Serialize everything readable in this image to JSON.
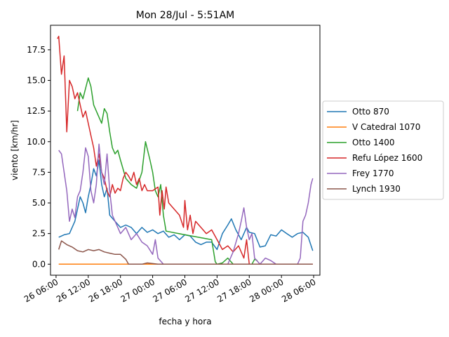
{
  "chart_data": {
    "type": "line",
    "title": "Mon 28/Jul - 5:51AM",
    "xlabel": "fecha y hora",
    "ylabel": "viento [km/hr]",
    "x_unit": "datetime",
    "xlim": [
      "2025-07-26 04:58",
      "2025-07-28 07:10"
    ],
    "ylim": [
      -0.9,
      19.5
    ],
    "x_ticks": [
      {
        "value": "2025-07-26 06:00",
        "label": "26 06:00"
      },
      {
        "value": "2025-07-26 12:00",
        "label": "26 12:00"
      },
      {
        "value": "2025-07-26 18:00",
        "label": "26 18:00"
      },
      {
        "value": "2025-07-27 00:00",
        "label": "27 00:00"
      },
      {
        "value": "2025-07-27 06:00",
        "label": "27 06:00"
      },
      {
        "value": "2025-07-27 12:00",
        "label": "27 12:00"
      },
      {
        "value": "2025-07-27 18:00",
        "label": "27 18:00"
      },
      {
        "value": "2025-07-28 00:00",
        "label": "28 00:00"
      },
      {
        "value": "2025-07-28 06:00",
        "label": "28 06:00"
      }
    ],
    "y_ticks": [
      {
        "value": 0.0,
        "label": "0.0"
      },
      {
        "value": 2.5,
        "label": "2.5"
      },
      {
        "value": 5.0,
        "label": "5.0"
      },
      {
        "value": 7.5,
        "label": "7.5"
      },
      {
        "value": 10.0,
        "label": "10.0"
      },
      {
        "value": 12.5,
        "label": "12.5"
      },
      {
        "value": 15.0,
        "label": "15.0"
      },
      {
        "value": 17.5,
        "label": "17.5"
      }
    ],
    "grid": false,
    "legend_position": "right",
    "series": [
      {
        "name": "Otto 870",
        "color": "#1f77b4",
        "points": [
          [
            "2025-07-26 06:30",
            2.2
          ],
          [
            "2025-07-26 07:30",
            2.4
          ],
          [
            "2025-07-26 08:30",
            2.5
          ],
          [
            "2025-07-26 09:30",
            3.5
          ],
          [
            "2025-07-26 10:00",
            4.5
          ],
          [
            "2025-07-26 10:30",
            5.5
          ],
          [
            "2025-07-26 11:00",
            5.0
          ],
          [
            "2025-07-26 11:30",
            4.2
          ],
          [
            "2025-07-26 12:00",
            5.5
          ],
          [
            "2025-07-26 12:30",
            6.5
          ],
          [
            "2025-07-26 13:00",
            7.8
          ],
          [
            "2025-07-26 13:30",
            7.2
          ],
          [
            "2025-07-26 14:00",
            8.5
          ],
          [
            "2025-07-26 14:30",
            6.5
          ],
          [
            "2025-07-26 15:00",
            5.5
          ],
          [
            "2025-07-26 15:30",
            6.2
          ],
          [
            "2025-07-26 16:00",
            4.0
          ],
          [
            "2025-07-26 17:00",
            3.5
          ],
          [
            "2025-07-26 18:00",
            3.0
          ],
          [
            "2025-07-26 19:00",
            3.2
          ],
          [
            "2025-07-26 20:00",
            3.0
          ],
          [
            "2025-07-26 21:00",
            2.5
          ],
          [
            "2025-07-26 22:00",
            3.0
          ],
          [
            "2025-07-26 23:00",
            2.6
          ],
          [
            "2025-07-27 00:00",
            2.8
          ],
          [
            "2025-07-27 01:00",
            2.5
          ],
          [
            "2025-07-27 02:00",
            2.7
          ],
          [
            "2025-07-27 03:00",
            2.2
          ],
          [
            "2025-07-27 04:00",
            2.4
          ],
          [
            "2025-07-27 05:00",
            2.0
          ],
          [
            "2025-07-27 06:00",
            2.4
          ],
          [
            "2025-07-27 07:00",
            2.3
          ],
          [
            "2025-07-27 08:00",
            1.8
          ],
          [
            "2025-07-27 09:00",
            1.6
          ],
          [
            "2025-07-27 10:00",
            1.8
          ],
          [
            "2025-07-27 11:00",
            1.8
          ],
          [
            "2025-07-27 12:00",
            1.2
          ],
          [
            "2025-07-27 13:00",
            2.5
          ],
          [
            "2025-07-27 14:00",
            3.2
          ],
          [
            "2025-07-27 14:40",
            3.7
          ],
          [
            "2025-07-27 15:30",
            2.8
          ],
          [
            "2025-07-27 16:30",
            2.0
          ],
          [
            "2025-07-27 17:30",
            3.0
          ],
          [
            "2025-07-27 18:00",
            2.6
          ],
          [
            "2025-07-27 19:00",
            2.5
          ],
          [
            "2025-07-27 20:00",
            1.4
          ],
          [
            "2025-07-27 21:00",
            1.5
          ],
          [
            "2025-07-27 22:00",
            2.4
          ],
          [
            "2025-07-27 23:00",
            2.3
          ],
          [
            "2025-07-28 00:00",
            2.8
          ],
          [
            "2025-07-28 01:00",
            2.5
          ],
          [
            "2025-07-28 02:00",
            2.2
          ],
          [
            "2025-07-28 03:00",
            2.5
          ],
          [
            "2025-07-28 04:00",
            2.6
          ],
          [
            "2025-07-28 05:00",
            2.2
          ],
          [
            "2025-07-28 05:50",
            1.1
          ]
        ]
      },
      {
        "name": "V Catedral 1070",
        "color": "#ff7f0e",
        "points": [
          [
            "2025-07-26 06:30",
            0.0
          ],
          [
            "2025-07-27 00:00",
            0.0
          ],
          [
            "2025-07-27 12:00",
            0.0
          ],
          [
            "2025-07-28 00:00",
            0.0
          ],
          [
            "2025-07-28 05:50",
            0.0
          ]
        ]
      },
      {
        "name": "Otto 1400",
        "color": "#2ca02c",
        "points": [
          [
            "2025-07-26 10:00",
            12.5
          ],
          [
            "2025-07-26 10:30",
            14.0
          ],
          [
            "2025-07-26 11:00",
            13.5
          ],
          [
            "2025-07-26 12:00",
            15.2
          ],
          [
            "2025-07-26 12:30",
            14.5
          ],
          [
            "2025-07-26 13:00",
            13.0
          ],
          [
            "2025-07-26 13:30",
            12.5
          ],
          [
            "2025-07-26 14:00",
            12.0
          ],
          [
            "2025-07-26 14:30",
            11.5
          ],
          [
            "2025-07-26 15:00",
            12.7
          ],
          [
            "2025-07-26 15:30",
            12.3
          ],
          [
            "2025-07-26 16:00",
            10.8
          ],
          [
            "2025-07-26 16:30",
            9.5
          ],
          [
            "2025-07-26 17:00",
            9.0
          ],
          [
            "2025-07-26 17:30",
            9.3
          ],
          [
            "2025-07-26 18:00",
            8.5
          ],
          [
            "2025-07-26 19:00",
            7.0
          ],
          [
            "2025-07-26 20:00",
            6.5
          ],
          [
            "2025-07-26 21:00",
            6.2
          ],
          [
            "2025-07-26 22:00",
            7.5
          ],
          [
            "2025-07-26 22:40",
            10.0
          ],
          [
            "2025-07-26 23:30",
            8.5
          ],
          [
            "2025-07-27 00:00",
            7.5
          ],
          [
            "2025-07-27 00:30",
            6.0
          ],
          [
            "2025-07-27 01:00",
            5.5
          ],
          [
            "2025-07-27 01:30",
            6.5
          ],
          [
            "2025-07-27 02:00",
            4.0
          ],
          [
            "2025-07-27 02:30",
            2.7
          ],
          [
            "2025-07-27 06:00",
            2.4
          ],
          [
            "2025-07-27 11:00",
            2.0
          ],
          [
            "2025-07-27 11:40",
            0.2
          ],
          [
            "2025-07-27 12:00",
            0.0
          ],
          [
            "2025-07-27 13:00",
            0.1
          ],
          [
            "2025-07-27 14:00",
            0.5
          ],
          [
            "2025-07-27 15:00",
            0.0
          ],
          [
            "2025-07-27 18:30",
            0.0
          ],
          [
            "2025-07-27 19:00",
            0.4
          ],
          [
            "2025-07-27 19:30",
            0.3
          ]
        ]
      },
      {
        "name": "Refu López 1600",
        "color": "#d62728",
        "points": [
          [
            "2025-07-26 06:15",
            18.4
          ],
          [
            "2025-07-26 06:30",
            18.6
          ],
          [
            "2025-07-26 07:00",
            15.5
          ],
          [
            "2025-07-26 07:30",
            17.0
          ],
          [
            "2025-07-26 08:00",
            10.8
          ],
          [
            "2025-07-26 08:30",
            15.0
          ],
          [
            "2025-07-26 09:00",
            14.5
          ],
          [
            "2025-07-26 09:30",
            13.5
          ],
          [
            "2025-07-26 10:00",
            14.0
          ],
          [
            "2025-07-26 10:30",
            13.0
          ],
          [
            "2025-07-26 11:00",
            12.0
          ],
          [
            "2025-07-26 11:30",
            12.5
          ],
          [
            "2025-07-26 12:00",
            11.5
          ],
          [
            "2025-07-26 12:30",
            10.5
          ],
          [
            "2025-07-26 13:00",
            9.5
          ],
          [
            "2025-07-26 13:30",
            8.0
          ],
          [
            "2025-07-26 14:00",
            9.0
          ],
          [
            "2025-07-26 14:30",
            7.5
          ],
          [
            "2025-07-26 15:00",
            7.0
          ],
          [
            "2025-07-26 15:30",
            6.0
          ],
          [
            "2025-07-26 16:00",
            5.5
          ],
          [
            "2025-07-26 16:30",
            6.5
          ],
          [
            "2025-07-26 17:00",
            5.8
          ],
          [
            "2025-07-26 17:30",
            6.2
          ],
          [
            "2025-07-26 18:00",
            6.0
          ],
          [
            "2025-07-26 18:30",
            7.0
          ],
          [
            "2025-07-26 19:00",
            7.5
          ],
          [
            "2025-07-26 19:30",
            7.2
          ],
          [
            "2025-07-26 20:00",
            6.8
          ],
          [
            "2025-07-26 20:30",
            7.5
          ],
          [
            "2025-07-26 21:00",
            6.5
          ],
          [
            "2025-07-26 21:30",
            7.0
          ],
          [
            "2025-07-26 22:00",
            6.0
          ],
          [
            "2025-07-26 22:30",
            6.5
          ],
          [
            "2025-07-26 23:00",
            6.0
          ],
          [
            "2025-07-27 00:00",
            6.0
          ],
          [
            "2025-07-27 01:00",
            6.3
          ],
          [
            "2025-07-27 01:20",
            4.0
          ],
          [
            "2025-07-27 01:45",
            6.0
          ],
          [
            "2025-07-27 02:10",
            4.5
          ],
          [
            "2025-07-27 02:30",
            6.3
          ],
          [
            "2025-07-27 03:00",
            5.0
          ],
          [
            "2025-07-27 05:00",
            4.0
          ],
          [
            "2025-07-27 05:45",
            3.0
          ],
          [
            "2025-07-27 06:00",
            5.2
          ],
          [
            "2025-07-27 06:30",
            2.8
          ],
          [
            "2025-07-27 07:00",
            4.0
          ],
          [
            "2025-07-27 07:30",
            2.5
          ],
          [
            "2025-07-27 08:00",
            3.5
          ],
          [
            "2025-07-27 09:00",
            3.0
          ],
          [
            "2025-07-27 10:00",
            2.5
          ],
          [
            "2025-07-27 11:00",
            2.8
          ],
          [
            "2025-07-27 12:00",
            2.0
          ],
          [
            "2025-07-27 13:00",
            1.2
          ],
          [
            "2025-07-27 14:00",
            1.5
          ],
          [
            "2025-07-27 15:00",
            1.0
          ],
          [
            "2025-07-27 16:00",
            1.5
          ],
          [
            "2025-07-27 17:00",
            0.5
          ],
          [
            "2025-07-27 17:30",
            2.0
          ],
          [
            "2025-07-27 18:00",
            0.0
          ],
          [
            "2025-07-28 00:00",
            0.0
          ],
          [
            "2025-07-28 05:50",
            0.0
          ]
        ]
      },
      {
        "name": "Frey 1770",
        "color": "#9467bd",
        "points": [
          [
            "2025-07-26 06:30",
            9.3
          ],
          [
            "2025-07-26 07:00",
            9.0
          ],
          [
            "2025-07-26 07:30",
            7.5
          ],
          [
            "2025-07-26 08:00",
            6.0
          ],
          [
            "2025-07-26 08:30",
            3.5
          ],
          [
            "2025-07-26 09:00",
            4.5
          ],
          [
            "2025-07-26 09:30",
            3.8
          ],
          [
            "2025-07-26 10:00",
            5.5
          ],
          [
            "2025-07-26 10:30",
            6.0
          ],
          [
            "2025-07-26 11:00",
            7.5
          ],
          [
            "2025-07-26 11:30",
            9.5
          ],
          [
            "2025-07-26 12:00",
            8.8
          ],
          [
            "2025-07-26 12:30",
            6.0
          ],
          [
            "2025-07-26 13:00",
            5.0
          ],
          [
            "2025-07-26 13:30",
            6.5
          ],
          [
            "2025-07-26 14:00",
            9.8
          ],
          [
            "2025-07-26 14:30",
            7.5
          ],
          [
            "2025-07-26 15:00",
            6.5
          ],
          [
            "2025-07-26 15:30",
            9.0
          ],
          [
            "2025-07-26 16:00",
            6.0
          ],
          [
            "2025-07-26 16:30",
            4.0
          ],
          [
            "2025-07-26 17:00",
            3.5
          ],
          [
            "2025-07-26 17:30",
            3.0
          ],
          [
            "2025-07-26 18:00",
            2.5
          ],
          [
            "2025-07-26 19:00",
            3.0
          ],
          [
            "2025-07-26 20:00",
            2.0
          ],
          [
            "2025-07-26 21:00",
            2.5
          ],
          [
            "2025-07-26 22:00",
            1.8
          ],
          [
            "2025-07-26 23:00",
            1.5
          ],
          [
            "2025-07-27 00:00",
            0.8
          ],
          [
            "2025-07-27 00:30",
            2.0
          ],
          [
            "2025-07-27 01:00",
            0.5
          ],
          [
            "2025-07-27 02:00",
            0.0
          ],
          [
            "2025-07-27 08:00",
            0.0
          ],
          [
            "2025-07-27 14:00",
            0.0
          ],
          [
            "2025-07-27 15:00",
            1.0
          ],
          [
            "2025-07-27 16:00",
            2.5
          ],
          [
            "2025-07-27 16:30",
            3.5
          ],
          [
            "2025-07-27 17:00",
            4.6
          ],
          [
            "2025-07-27 17:30",
            3.0
          ],
          [
            "2025-07-27 18:00",
            2.0
          ],
          [
            "2025-07-27 18:30",
            2.5
          ],
          [
            "2025-07-27 19:00",
            0.5
          ],
          [
            "2025-07-27 20:00",
            0.0
          ],
          [
            "2025-07-27 21:00",
            0.5
          ],
          [
            "2025-07-27 22:00",
            0.3
          ],
          [
            "2025-07-27 23:00",
            0.0
          ],
          [
            "2025-07-28 01:00",
            0.0
          ],
          [
            "2025-07-28 03:00",
            0.0
          ],
          [
            "2025-07-28 03:30",
            0.5
          ],
          [
            "2025-07-28 04:00",
            3.5
          ],
          [
            "2025-07-28 04:30",
            4.0
          ],
          [
            "2025-07-28 05:00",
            5.0
          ],
          [
            "2025-07-28 05:30",
            6.5
          ],
          [
            "2025-07-28 05:50",
            7.0
          ]
        ]
      },
      {
        "name": "Lynch 1930",
        "color": "#8c564b",
        "points": [
          [
            "2025-07-26 06:30",
            1.2
          ],
          [
            "2025-07-26 07:00",
            1.9
          ],
          [
            "2025-07-26 08:00",
            1.6
          ],
          [
            "2025-07-26 09:00",
            1.4
          ],
          [
            "2025-07-26 10:00",
            1.1
          ],
          [
            "2025-07-26 11:00",
            1.0
          ],
          [
            "2025-07-26 12:00",
            1.2
          ],
          [
            "2025-07-26 13:00",
            1.1
          ],
          [
            "2025-07-26 14:00",
            1.2
          ],
          [
            "2025-07-26 15:00",
            1.0
          ],
          [
            "2025-07-26 16:00",
            0.9
          ],
          [
            "2025-07-26 17:00",
            0.8
          ],
          [
            "2025-07-26 18:00",
            0.8
          ],
          [
            "2025-07-26 19:00",
            0.4
          ],
          [
            "2025-07-26 19:30",
            0.0
          ],
          [
            "2025-07-26 22:00",
            0.0
          ],
          [
            "2025-07-26 23:00",
            0.1
          ],
          [
            "2025-07-27 00:00",
            0.05
          ],
          [
            "2025-07-27 01:00",
            0.0
          ],
          [
            "2025-07-28 05:50",
            0.0
          ]
        ]
      }
    ]
  }
}
